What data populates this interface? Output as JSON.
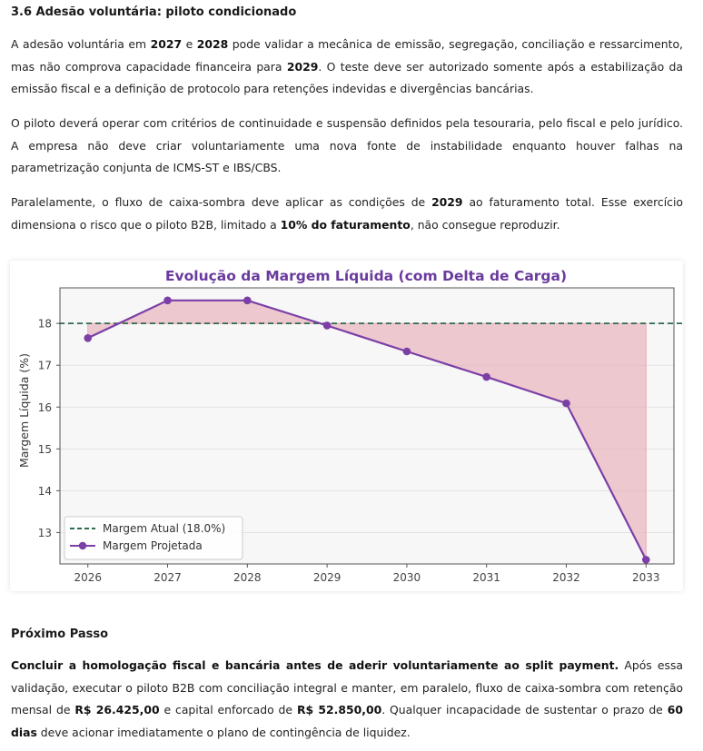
{
  "section": {
    "title": "3.6 Adesão voluntária: piloto condicionado"
  },
  "paragraphs": {
    "p1": {
      "t1": "A adesão voluntária em ",
      "b1": "2027",
      "t2": " e ",
      "b2": "2028",
      "t3": " pode validar a mecânica de emissão, segregação, conciliação e ressarcimento, mas não comprova capacidade financeira para ",
      "b3": "2029",
      "t4": ". O teste deve ser autorizado somente após a estabilização da emissão fiscal e a definição de protocolo para retenções indevidas e divergências bancárias."
    },
    "p2": {
      "t1": "O piloto deverá operar com critérios de continuidade e suspensão definidos pela tesouraria, pelo fiscal e pelo jurídico. A empresa não deve criar voluntariamente uma nova fonte de instabilidade enquanto houver falhas na parametrização conjunta de ICMS-ST e IBS/CBS."
    },
    "p3": {
      "t1": "Paralelamente, o fluxo de caixa-sombra deve aplicar as condições de ",
      "b1": "2029",
      "t2": " ao faturamento total. Esse exercício dimensiona o risco que o piloto B2B, limitado a ",
      "b2": "10% do faturamento",
      "t3": ", não consegue reproduzir."
    }
  },
  "chart_data": {
    "type": "line",
    "title": "Evolução da Margem Líquida (com Delta de Carga)",
    "xlabel": "",
    "ylabel": "Margem Líquida (%)",
    "x": [
      2026,
      2027,
      2028,
      2029,
      2030,
      2031,
      2032,
      2033
    ],
    "x_tick_labels": [
      "2026",
      "2027",
      "2028",
      "2029",
      "2030",
      "2031",
      "2032",
      "2033"
    ],
    "y_ticks": [
      13,
      14,
      15,
      16,
      17,
      18
    ],
    "y_tick_labels": [
      "13",
      "14",
      "15",
      "16",
      "17",
      "18"
    ],
    "ylim": [
      12.25,
      18.85
    ],
    "xlim": [
      2025.65,
      2033.35
    ],
    "series": [
      {
        "name": "Margem Projetada",
        "values": [
          17.65,
          18.55,
          18.55,
          17.95,
          17.33,
          16.72,
          16.09,
          12.35
        ],
        "color": "#7b3fa6"
      }
    ],
    "reference_line": {
      "name": "Margem Atual (18.0%)",
      "value": 18.0,
      "color": "#2e6b4f",
      "style": "dashed"
    },
    "fill_color": "#e8b4bd",
    "grid": true,
    "legend_position": "bottom-left",
    "title_color": "#6a3a9e"
  },
  "next_step": {
    "title": "Próximo Passo",
    "b1": "Concluir a homologação fiscal e bancária antes de aderir voluntariamente ao split payment.",
    "t1": " Após essa validação, executar o piloto B2B com conciliação integral e manter, em paralelo, fluxo de caixa-sombra com retenção mensal de ",
    "b2": "R$ 26.425,00",
    "t2": " e capital enforcado de ",
    "b3": "R$ 52.850,00",
    "t3": ". Qualquer incapacidade de sustentar o prazo de ",
    "b4": "60 dias",
    "t4": " deve acionar imediatamente o plano de contingência de liquidez."
  }
}
